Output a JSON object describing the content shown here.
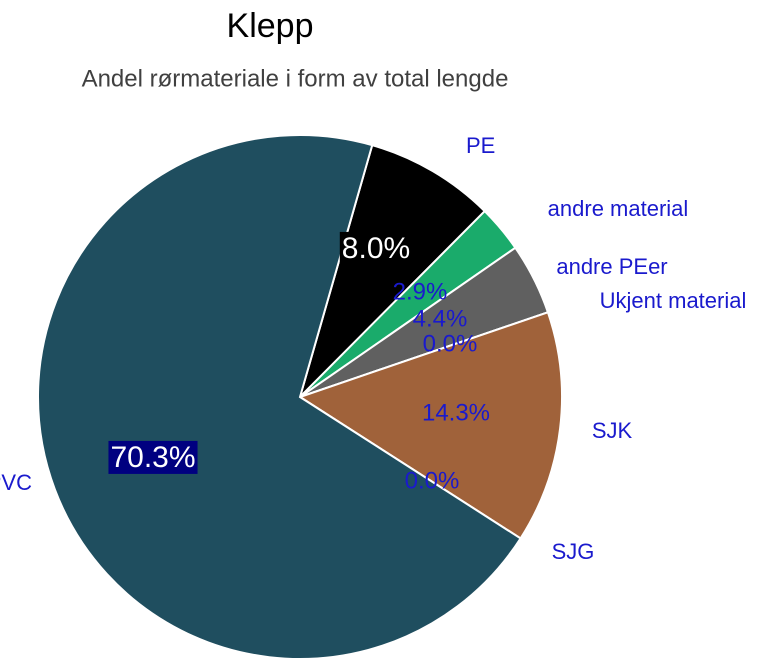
{
  "chart_data": {
    "type": "pie",
    "title": "Klepp",
    "subtitle": "Andel rørmateriale i form av total lengde",
    "categories": [
      "PE",
      "andre material",
      "andre PEer",
      "Ukjent material",
      "SJK",
      "SJG",
      "PVC"
    ],
    "values": [
      8.0,
      2.9,
      4.4,
      0.0,
      14.3,
      0.0,
      70.3
    ],
    "value_labels": [
      "8.0%",
      "2.9%",
      "4.4%",
      "0.0%",
      "14.3%",
      "0.0%",
      "70.3%"
    ],
    "colors": [
      "#000000",
      "#1aab6b",
      "#606060",
      "#3a7bd5",
      "#a0623a",
      "#c9c9c9",
      "#1f4e5f"
    ]
  }
}
